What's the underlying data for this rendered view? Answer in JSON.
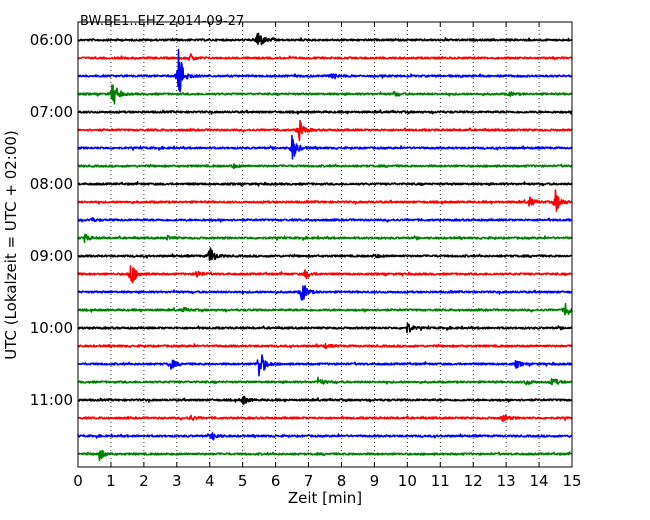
{
  "chart_data": {
    "type": "line",
    "title": "BW.BE1..EHZ 2014-09-27",
    "xlabel": "Zeit  [min]",
    "ylabel": "UTC (Lokalzeit = UTC + 02:00)",
    "xlim": [
      0,
      15
    ],
    "x_ticks": [
      "0",
      "1",
      "2",
      "3",
      "4",
      "5",
      "6",
      "7",
      "8",
      "9",
      "10",
      "11",
      "12",
      "13",
      "14",
      "15"
    ],
    "y_ticks": [
      "06:00",
      "07:00",
      "08:00",
      "09:00",
      "10:00",
      "11:00"
    ],
    "grid": "vertical dotted",
    "trace_colors": [
      "#000000",
      "#ff0000",
      "#0000ff",
      "#008000"
    ],
    "traces": [
      {
        "start": "06:00",
        "color": "#000000",
        "events": [
          {
            "t": 5.45,
            "amp": 12
          }
        ]
      },
      {
        "start": "06:15",
        "color": "#ff0000",
        "events": [
          {
            "t": 3.4,
            "amp": 4
          }
        ]
      },
      {
        "start": "06:30",
        "color": "#0000ff",
        "events": [
          {
            "t": 3.05,
            "amp": 28
          },
          {
            "t": 7.7,
            "amp": 4
          }
        ]
      },
      {
        "start": "06:45",
        "color": "#008000",
        "events": [
          {
            "t": 1.05,
            "amp": 15
          },
          {
            "t": 9.6,
            "amp": 2
          },
          {
            "t": 13.1,
            "amp": 2
          }
        ]
      },
      {
        "start": "07:00",
        "color": "#000000",
        "events": []
      },
      {
        "start": "07:15",
        "color": "#ff0000",
        "events": [
          {
            "t": 6.7,
            "amp": 12
          }
        ]
      },
      {
        "start": "07:30",
        "color": "#0000ff",
        "events": [
          {
            "t": 6.5,
            "amp": 14
          }
        ]
      },
      {
        "start": "07:45",
        "color": "#008000",
        "events": [
          {
            "t": 4.7,
            "amp": 2
          }
        ]
      },
      {
        "start": "08:00",
        "color": "#000000",
        "events": []
      },
      {
        "start": "08:15",
        "color": "#ff0000",
        "events": [
          {
            "t": 13.7,
            "amp": 5
          },
          {
            "t": 14.5,
            "amp": 12
          }
        ]
      },
      {
        "start": "08:30",
        "color": "#0000ff",
        "events": [
          {
            "t": 0.4,
            "amp": 2
          }
        ]
      },
      {
        "start": "08:45",
        "color": "#008000",
        "events": [
          {
            "t": 0.2,
            "amp": 4
          },
          {
            "t": 2.7,
            "amp": 2
          }
        ]
      },
      {
        "start": "09:00",
        "color": "#000000",
        "events": [
          {
            "t": 4.0,
            "amp": 11
          },
          {
            "t": 9.0,
            "amp": 2
          }
        ]
      },
      {
        "start": "09:15",
        "color": "#ff0000",
        "events": [
          {
            "t": 1.6,
            "amp": 14
          },
          {
            "t": 3.6,
            "amp": 4
          },
          {
            "t": 6.9,
            "amp": 5
          }
        ]
      },
      {
        "start": "09:30",
        "color": "#0000ff",
        "events": [
          {
            "t": 6.8,
            "amp": 12
          }
        ]
      },
      {
        "start": "09:45",
        "color": "#008000",
        "events": [
          {
            "t": 3.2,
            "amp": 2
          },
          {
            "t": 14.8,
            "amp": 9
          }
        ]
      },
      {
        "start": "10:00",
        "color": "#000000",
        "events": [
          {
            "t": 10.0,
            "amp": 6
          }
        ]
      },
      {
        "start": "10:15",
        "color": "#ff0000",
        "events": [
          {
            "t": 7.5,
            "amp": 2
          }
        ]
      },
      {
        "start": "10:30",
        "color": "#0000ff",
        "events": [
          {
            "t": 2.8,
            "amp": 6
          },
          {
            "t": 5.5,
            "amp": 18
          },
          {
            "t": 13.3,
            "amp": 4
          }
        ]
      },
      {
        "start": "10:45",
        "color": "#008000",
        "events": [
          {
            "t": 7.3,
            "amp": 4
          },
          {
            "t": 13.6,
            "amp": 3
          },
          {
            "t": 14.4,
            "amp": 5
          }
        ]
      },
      {
        "start": "11:00",
        "color": "#000000",
        "events": [
          {
            "t": 5.0,
            "amp": 5
          }
        ]
      },
      {
        "start": "11:15",
        "color": "#ff0000",
        "events": [
          {
            "t": 3.4,
            "amp": 3
          },
          {
            "t": 12.9,
            "amp": 4
          }
        ]
      },
      {
        "start": "11:30",
        "color": "#0000ff",
        "events": [
          {
            "t": 4.1,
            "amp": 4
          }
        ]
      },
      {
        "start": "11:45",
        "color": "#008000",
        "events": [
          {
            "t": 0.65,
            "amp": 6
          }
        ]
      }
    ]
  }
}
